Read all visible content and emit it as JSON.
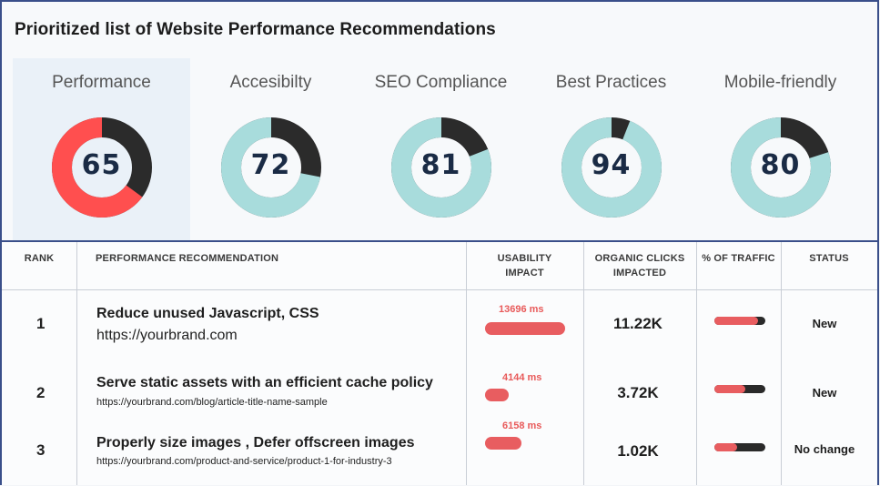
{
  "title": "Prioritized list of Website Performance Recommendations",
  "colors": {
    "accent_red": "#ff4f4f",
    "accent_teal": "#a8dcdc",
    "dark": "#2b2b2b",
    "border": "#3a4f8a"
  },
  "scores": [
    {
      "label": "Performance",
      "value": "65",
      "percent": 65,
      "color": "#ff4f4f",
      "active": true
    },
    {
      "label": "Accesibilty",
      "value": "72",
      "percent": 72,
      "color": "#a8dcdc",
      "active": false
    },
    {
      "label": "SEO Compliance",
      "value": "81",
      "percent": 81,
      "color": "#a8dcdc",
      "active": false
    },
    {
      "label": "Best Practices",
      "value": "94",
      "percent": 94,
      "color": "#a8dcdc",
      "active": false
    },
    {
      "label": "Mobile-friendly",
      "value": "80",
      "percent": 80,
      "color": "#a8dcdc",
      "active": false
    }
  ],
  "table": {
    "headers": {
      "rank": "RANK",
      "recommendation": "PERFORMANCE RECOMMENDATION",
      "usability_line1": "USABILITY",
      "usability_line2": "IMPACT",
      "clicks_line1": "ORGANIC CLICKS",
      "clicks_line2": "IMPACTED",
      "traffic": "% OF TRAFFIC",
      "status": "STATUS"
    },
    "rows": [
      {
        "rank": "1",
        "title": "Reduce unused Javascript, CSS",
        "url": "https://yourbrand.com",
        "usability": "13696 ms",
        "usability_fraction": 1.0,
        "clicks": "11.22K",
        "traffic_fraction": 0.85,
        "status": "New"
      },
      {
        "rank": "2",
        "title": "Serve static assets with an efficient cache policy",
        "url": "https://yourbrand.com/blog/article-title-name-sample",
        "usability": "4144 ms",
        "usability_fraction": 0.3,
        "clicks": "3.72K",
        "traffic_fraction": 0.6,
        "status": "New"
      },
      {
        "rank": "3",
        "title": "Properly size images , Defer offscreen images",
        "url": "https://yourbrand.com/product-and-service/product-1-for-industry-3",
        "usability": "6158 ms",
        "usability_fraction": 0.45,
        "clicks": "1.02K",
        "traffic_fraction": 0.45,
        "status": "No change"
      }
    ]
  }
}
